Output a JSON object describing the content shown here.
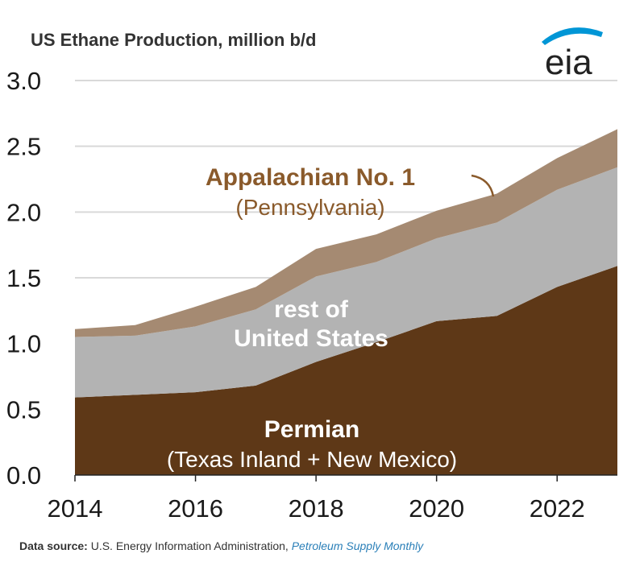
{
  "chart_data": {
    "type": "area",
    "stacked": true,
    "title": "US Ethane Production, million b/d",
    "xlabel": "",
    "ylabel": "",
    "x": [
      2014,
      2015,
      2016,
      2017,
      2018,
      2019,
      2020,
      2021,
      2022,
      2023
    ],
    "xticks": [
      "2014",
      "2016",
      "2018",
      "2020",
      "2022"
    ],
    "yticks": [
      "0.0",
      "0.5",
      "1.0",
      "1.5",
      "2.0",
      "2.5",
      "3.0"
    ],
    "ylim": [
      0,
      3.0
    ],
    "grid": true,
    "series": [
      {
        "name": "Permian",
        "sublabel": "(Texas Inland + New Mexico)",
        "color": "#5e3817",
        "label_color": "#ffffff",
        "values": [
          0.59,
          0.61,
          0.63,
          0.68,
          0.86,
          1.01,
          1.17,
          1.21,
          1.43,
          1.59
        ]
      },
      {
        "name": "rest of",
        "name2": "United States",
        "color": "#b3b3b3",
        "label_color": "#ffffff",
        "values": [
          0.46,
          0.45,
          0.5,
          0.58,
          0.65,
          0.61,
          0.63,
          0.71,
          0.74,
          0.75
        ]
      },
      {
        "name": "Appalachian No. 1",
        "sublabel": "(Pennsylvania)",
        "color": "#a58a72",
        "label_color": "#8a5a2b",
        "values": [
          0.06,
          0.08,
          0.15,
          0.17,
          0.21,
          0.21,
          0.21,
          0.22,
          0.24,
          0.29
        ]
      }
    ]
  },
  "logo": {
    "text": "eia"
  },
  "footer": {
    "label": "Data source:",
    "source": "U.S. Energy Information Administration,",
    "publication": "Petroleum Supply Monthly"
  }
}
